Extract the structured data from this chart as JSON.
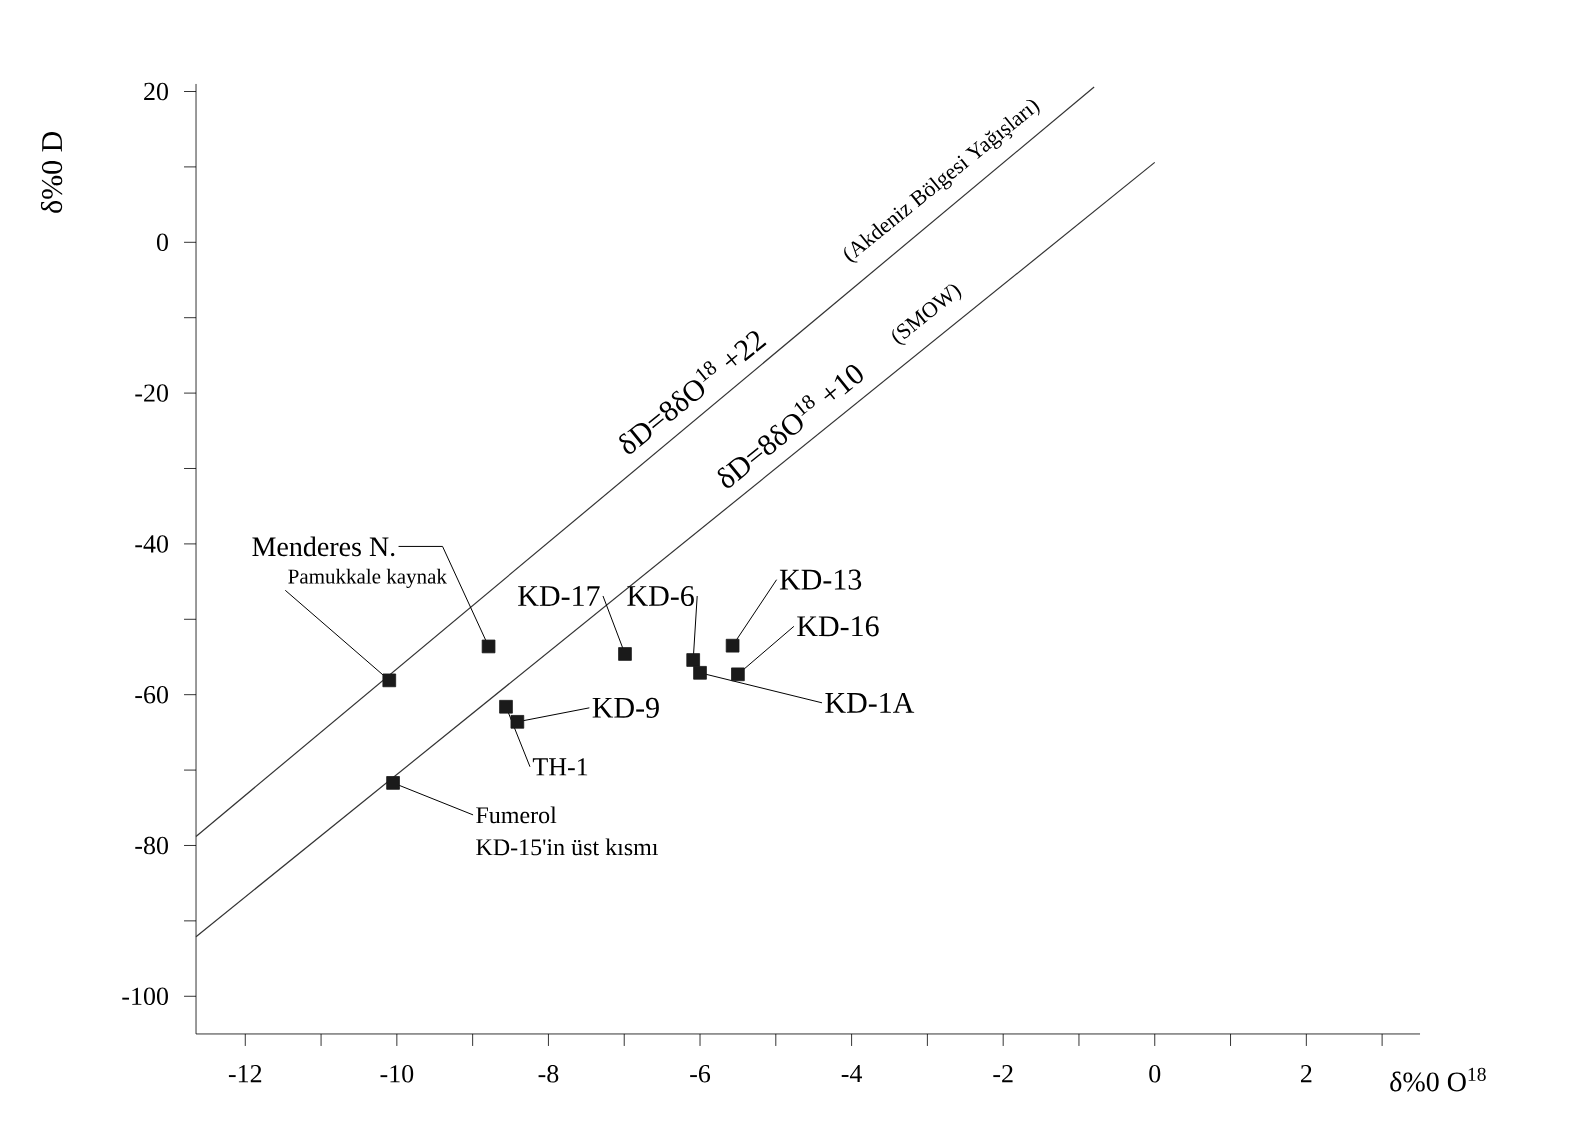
{
  "chart_data": {
    "type": "scatter",
    "xlabel": "δ%0 O$^{18}$",
    "ylabel": "δ%0 D",
    "xlim": [
      -12.65,
      3.5
    ],
    "ylim": [
      -105,
      21
    ],
    "xticks": [
      -12,
      {
        "value": -11,
        "label": null
      },
      -10,
      {
        "value": -9,
        "label": null
      },
      -8,
      {
        "value": -7,
        "label": null
      },
      -6,
      {
        "value": -5,
        "label": null
      },
      -4,
      {
        "value": -3,
        "label": null
      },
      -2,
      {
        "value": -1,
        "label": null
      },
      0,
      {
        "value": 1,
        "label": null
      },
      2,
      {
        "value": 3,
        "label": null
      }
    ],
    "yticks": [
      20,
      {
        "value": 10,
        "label": null
      },
      0,
      {
        "value": -10,
        "label": null
      },
      -20,
      {
        "value": -30,
        "label": null
      },
      -40,
      {
        "value": -50,
        "label": null
      },
      -60,
      {
        "value": -70,
        "label": null
      },
      -80,
      {
        "value": -90,
        "label": null
      },
      -100
    ],
    "series": [
      {
        "marker": "square",
        "color": "#1a1a1a",
        "x": [
          -8.79,
          -10.1,
          -6.99,
          -6.09,
          -5.57,
          -5.5,
          -6.0,
          -8.41,
          -8.56,
          -10.05
        ],
        "values": [
          -53.6,
          -58.1,
          -54.6,
          -55.4,
          -53.5,
          -57.3,
          -57.1,
          -63.6,
          -61.6,
          -71.7
        ]
      },
      {
        "type": "line",
        "color": "#333333",
        "x": [
          -12.65,
          -0.8
        ],
        "values": [
          -78.8,
          20.6
        ]
      },
      {
        "type": "line",
        "color": "#333333",
        "x": [
          -12.65,
          0
        ],
        "values": [
          -92.1,
          10.6
        ]
      }
    ],
    "annotations": [
      {
        "text": "Menderes N.",
        "x": -8.79,
        "y": -53.6
      },
      {
        "text": "Pamukkale kaynak",
        "x": -10.1,
        "y": -58.1
      },
      {
        "text": "KD-17",
        "x": -6.99,
        "y": -54.6
      },
      {
        "text": "KD-6",
        "x": -6.09,
        "y": -55.4
      },
      {
        "text": "KD-13",
        "x": -5.57,
        "y": -53.5
      },
      {
        "text": "KD-16",
        "x": -5.5,
        "y": -57.3
      },
      {
        "text": "KD-1A",
        "x": -6.0,
        "y": -57.1
      },
      {
        "text": "KD-9",
        "x": -8.41,
        "y": -63.6
      },
      {
        "text": "TH-1",
        "x": -8.56,
        "y": -61.6
      },
      {
        "text": "Fumerol",
        "x": -10.05,
        "y": -71.7
      },
      {
        "text": "KD-15'in üst kısmı",
        "x": -10.05,
        "y": -71.7
      },
      {
        "text": "δD=8δO$^{18}$ +22",
        "x": -5.9,
        "y": -22.5
      },
      {
        "text": "(Akdeniz Bölgesi Yağışları)",
        "x": -2.6,
        "y": 5.5
      },
      {
        "text": "δD=8δO$^{18}$ +10",
        "x": -4.6,
        "y": -27.0
      },
      {
        "text": "(SMOW)",
        "x": -2.8,
        "y": -12.2
      }
    ]
  }
}
